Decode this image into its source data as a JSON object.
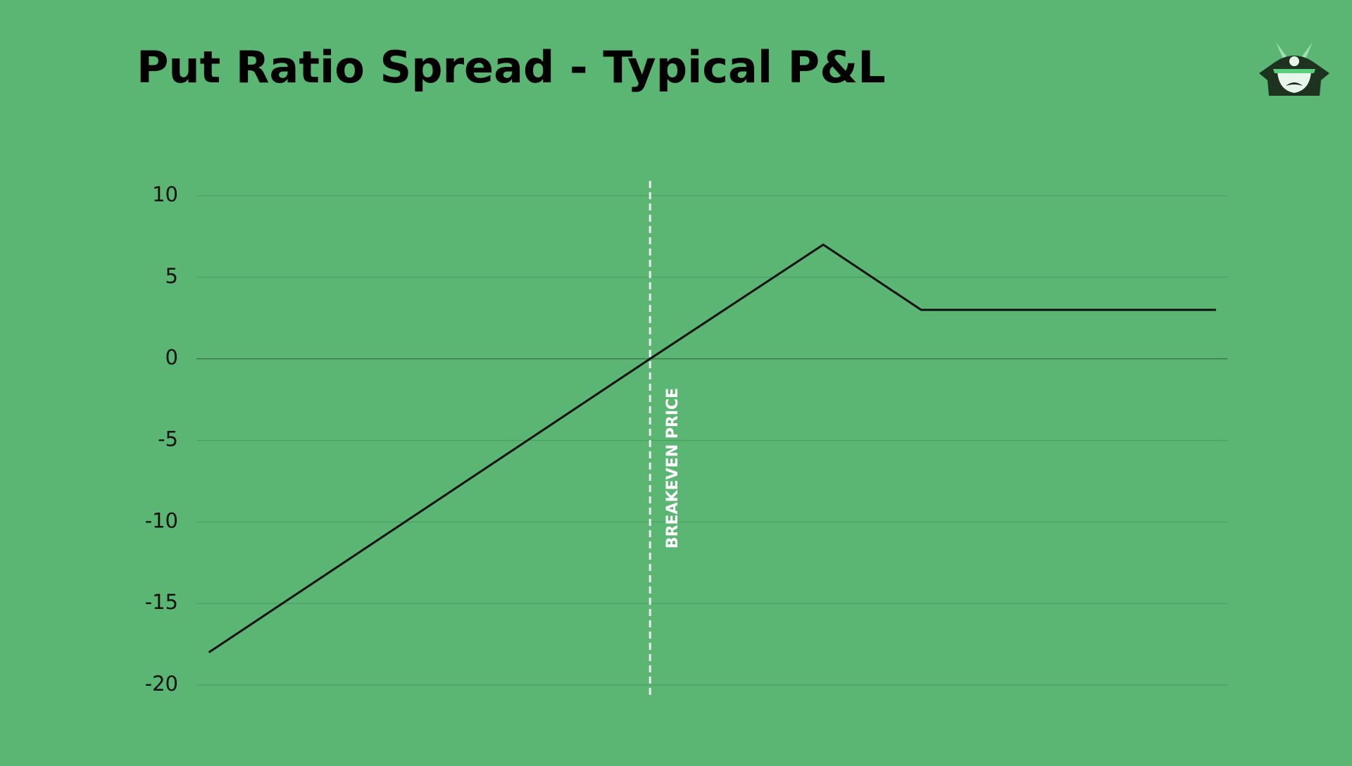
{
  "chart_data": {
    "type": "line",
    "title": "Put Ratio Spread - Typical P&L",
    "x": [
      1.2,
      44,
      60.8,
      70.3,
      98.9
    ],
    "series": [
      {
        "color": "#111111",
        "values": [
          -18,
          0,
          7,
          3,
          3
        ]
      }
    ],
    "xlim": [
      0,
      100
    ],
    "ylim": [
      -20,
      10
    ],
    "yticks": [
      -20,
      -15,
      -10,
      -5,
      0,
      5,
      10
    ],
    "grid": true,
    "annotations": [
      {
        "text": "BREAKEVEN PRICE",
        "x": 44
      }
    ]
  }
}
